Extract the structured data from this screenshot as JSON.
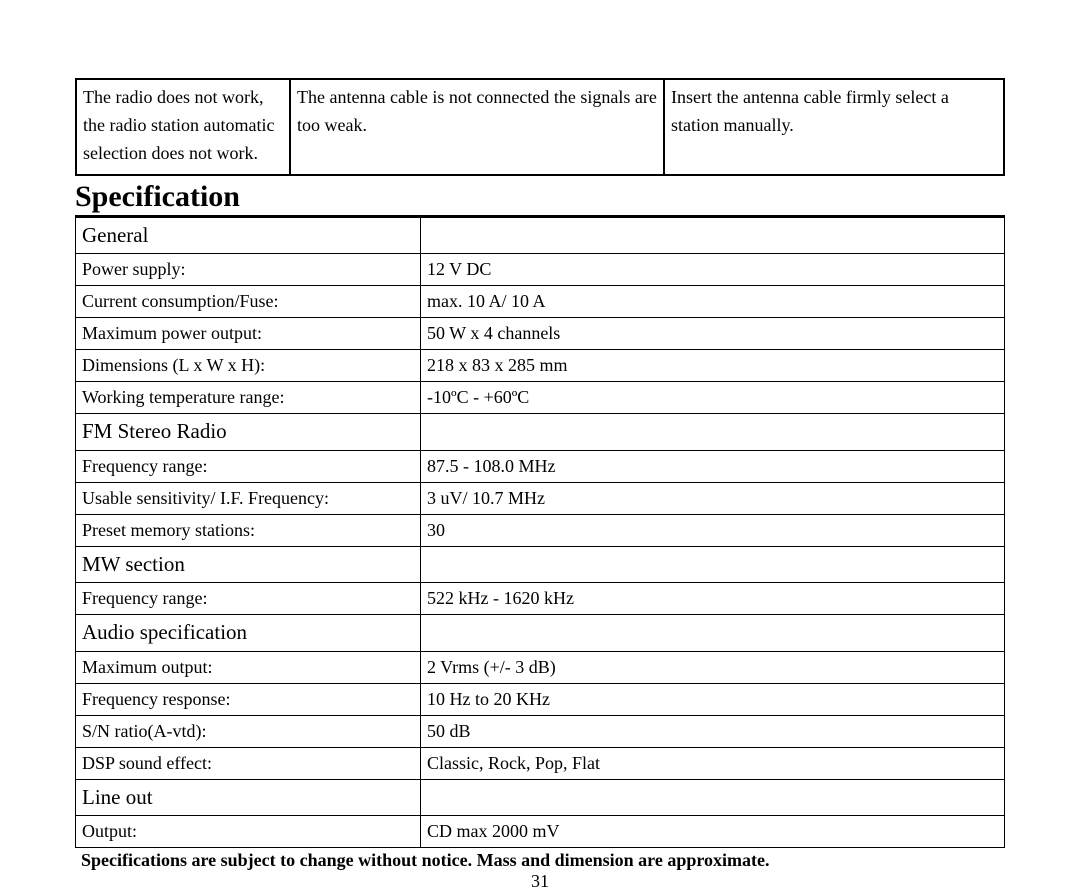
{
  "troubleshoot": {
    "problem": "The radio does not work, the radio station automatic selection does not work.",
    "cause": "The antenna cable is not connected the signals are too weak.",
    "remedy": "Insert the antenna cable firmly select a station manually."
  },
  "title": "Specification",
  "sections": {
    "general": {
      "header": "General",
      "rows": [
        {
          "label": "Power supply:",
          "value": "12 V DC"
        },
        {
          "label": "Current consumption/Fuse:",
          "value": "max. 10 A/ 10 A"
        },
        {
          "label": "Maximum power output:",
          "value": "50 W x 4 channels"
        },
        {
          "label": "Dimensions (L x W x H):",
          "value": "218 x 83 x 285 mm"
        },
        {
          "label": "Working temperature range:",
          "value": "-10ºC    -    +60ºC"
        }
      ]
    },
    "fm": {
      "header": "FM Stereo Radio",
      "rows": [
        {
          "label": "Frequency range:",
          "value": "87.5 - 108.0 MHz"
        },
        {
          "label": "Usable sensitivity/ I.F. Frequency:",
          "value": "3 uV/ 10.7 MHz"
        },
        {
          "label": "Preset memory stations:",
          "value": "30"
        }
      ]
    },
    "mw": {
      "header": "MW section",
      "rows": [
        {
          "label": "Frequency range:",
          "value": "522 kHz - 1620 kHz"
        }
      ]
    },
    "audio": {
      "header": "Audio specification",
      "rows": [
        {
          "label": "Maximum output:",
          "value": "2 Vrms (+/- 3 dB)"
        },
        {
          "label": "Frequency response:",
          "value": "10 Hz to 20 KHz"
        },
        {
          "label": "S/N ratio(A-vtd):",
          "value": "50 dB"
        },
        {
          "label": "DSP sound effect:",
          "value": "Classic, Rock, Pop, Flat"
        }
      ]
    },
    "lineout": {
      "header": "Line out",
      "rows": [
        {
          "label": "Output:",
          "value": "CD max 2000 mV"
        }
      ]
    }
  },
  "footnote": "Specifications are subject to change without notice. Mass and dimension are approximate.",
  "page_number": "31"
}
